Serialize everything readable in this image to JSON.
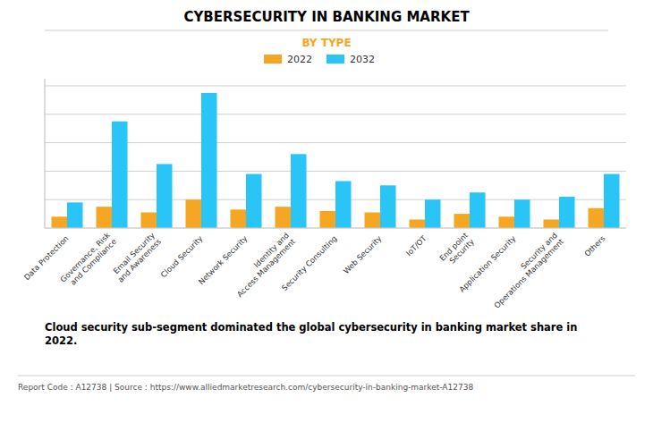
{
  "chart_data": {
    "type": "bar",
    "title": "CYBERSECURITY IN BANKING MARKET",
    "subtitle": "BY TYPE",
    "categories": [
      "Data Protection",
      "Governance, Risk\nand Compliance",
      "Email Security\nand Awareness",
      "Cloud Security",
      "Network Security",
      "Identity and\nAccess Management",
      "Security Consulting",
      "Web Security",
      "IoT/OT",
      "End point\nSecurity",
      "Application Security",
      "Security and\nOperations Management",
      "Others"
    ],
    "series": [
      {
        "name": "2022",
        "color": "#f5a623",
        "values": [
          0.8,
          1.5,
          1.1,
          2.0,
          1.3,
          1.5,
          1.2,
          1.1,
          0.6,
          1.0,
          0.8,
          0.6,
          1.4
        ]
      },
      {
        "name": "2032",
        "color": "#29c5f6",
        "values": [
          1.8,
          7.5,
          4.5,
          9.5,
          3.8,
          5.2,
          3.3,
          3.0,
          2.0,
          2.5,
          2.0,
          2.2,
          3.8
        ]
      }
    ],
    "ylim": [
      0,
      10.5
    ],
    "yticks": [
      0,
      2,
      4,
      6,
      8,
      10
    ],
    "grid": true,
    "tick_labels": "x",
    "legend": "top",
    "annotations": [
      "Cloud security sub-segment dominated the global cybersecurity in banking market share in\n2022.",
      "Report Code : A12738  |  Source : https://www.alliedmarketresearch.com/cybersecurity-in-banking-market-A12738"
    ]
  }
}
